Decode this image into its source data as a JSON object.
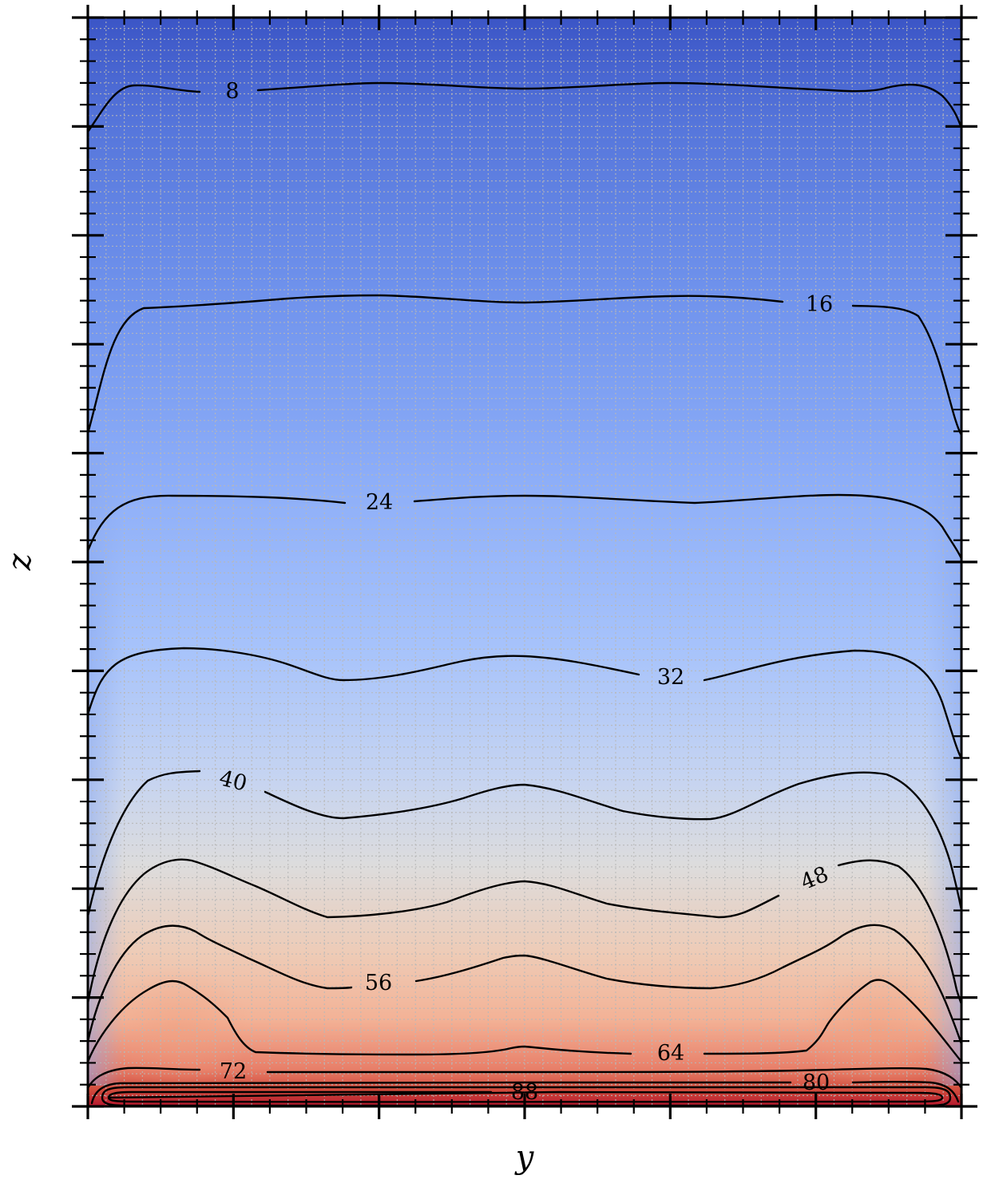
{
  "chart_data": {
    "type": "contour",
    "title": "",
    "xlabel": "y",
    "ylabel": "z",
    "grid": true,
    "tick_labels_shown": false,
    "colormap": "coolwarm",
    "colorscale_range": [
      0,
      96
    ],
    "contour_levels": [
      8,
      16,
      24,
      32,
      40,
      48,
      56,
      64,
      72,
      80,
      88
    ],
    "contour_labels": [
      "8",
      "16",
      "24",
      "32",
      "40",
      "48",
      "56",
      "64",
      "72",
      "80",
      "88"
    ],
    "x_range": [
      0,
      1
    ],
    "z_range": [
      0,
      1
    ]
  }
}
